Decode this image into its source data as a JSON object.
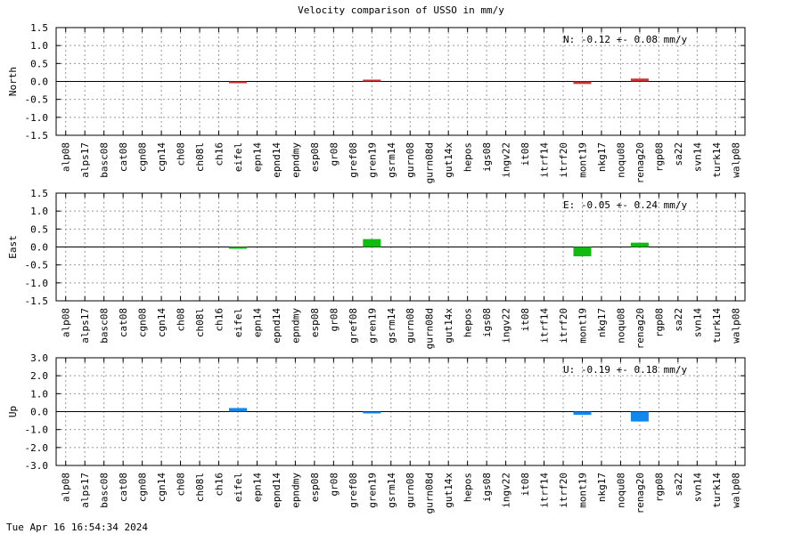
{
  "title": "Velocity comparison of USSO in mm/y",
  "timestamp": "Tue Apr 16 16:54:34 2024",
  "chart_data": [
    {
      "type": "bar",
      "ylabel": "North",
      "summary": "N:  -0.12 +-  0.08 mm/y",
      "color": "#cc3333",
      "ylim": [
        -1.5,
        1.5
      ],
      "yticks": [
        "1.5",
        "1.0",
        "0.5",
        "0.0",
        "-0.5",
        "-1.0",
        "-1.5"
      ],
      "categories": [
        "alp08",
        "alps17",
        "basc08",
        "cat08",
        "cgn08",
        "cgn14",
        "ch08",
        "ch08l",
        "ch16",
        "eifel",
        "epn14",
        "epnd14",
        "epndmy",
        "esp08",
        "gr08",
        "gref08",
        "gren19",
        "gsrm14",
        "gurn08",
        "gurn08d",
        "gut14x",
        "hepos",
        "igs08",
        "ingv22",
        "it08",
        "itrf14",
        "itrf20",
        "mont19",
        "nkg17",
        "noqu08",
        "renag20",
        "rgp08",
        "sa22",
        "svn14",
        "turk14",
        "walp08"
      ],
      "values": [
        null,
        null,
        null,
        null,
        null,
        null,
        null,
        null,
        null,
        -0.02,
        null,
        null,
        null,
        null,
        null,
        null,
        0.05,
        null,
        null,
        null,
        null,
        null,
        null,
        null,
        null,
        null,
        null,
        -0.07,
        null,
        null,
        0.08,
        null,
        null,
        null,
        null,
        null
      ],
      "grid": true
    },
    {
      "type": "bar",
      "ylabel": "East",
      "summary": "E:  -0.05 +-  0.24 mm/y",
      "color": "#11bb11",
      "ylim": [
        -1.5,
        1.5
      ],
      "yticks": [
        "1.5",
        "1.0",
        "0.5",
        "0.0",
        "-0.5",
        "-1.0",
        "-1.5"
      ],
      "categories": [
        "alp08",
        "alps17",
        "basc08",
        "cat08",
        "cgn08",
        "cgn14",
        "ch08",
        "ch08l",
        "ch16",
        "eifel",
        "epn14",
        "epnd14",
        "epndmy",
        "esp08",
        "gr08",
        "gref08",
        "gren19",
        "gsrm14",
        "gurn08",
        "gurn08d",
        "gut14x",
        "hepos",
        "igs08",
        "ingv22",
        "it08",
        "itrf14",
        "itrf20",
        "mont19",
        "nkg17",
        "noqu08",
        "renag20",
        "rgp08",
        "sa22",
        "svn14",
        "turk14",
        "walp08"
      ],
      "values": [
        null,
        null,
        null,
        null,
        null,
        null,
        null,
        null,
        null,
        -0.02,
        null,
        null,
        null,
        null,
        null,
        null,
        0.22,
        null,
        null,
        null,
        null,
        null,
        null,
        null,
        null,
        null,
        null,
        -0.26,
        null,
        null,
        0.12,
        null,
        null,
        null,
        null,
        null
      ],
      "grid": true
    },
    {
      "type": "bar",
      "ylabel": "Up",
      "summary": "U:  -0.19 +-  0.18 mm/y",
      "color": "#1188ee",
      "ylim": [
        -3.0,
        3.0
      ],
      "yticks": [
        "3.0",
        "2.0",
        "1.0",
        "0.0",
        "-1.0",
        "-2.0",
        "-3.0"
      ],
      "categories": [
        "alp08",
        "alps17",
        "basc08",
        "cat08",
        "cgn08",
        "cgn14",
        "ch08",
        "ch08l",
        "ch16",
        "eifel",
        "epn14",
        "epnd14",
        "epndmy",
        "esp08",
        "gr08",
        "gref08",
        "gren19",
        "gsrm14",
        "gurn08",
        "gurn08d",
        "gut14x",
        "hepos",
        "igs08",
        "ingv22",
        "it08",
        "itrf14",
        "itrf20",
        "mont19",
        "nkg17",
        "noqu08",
        "renag20",
        "rgp08",
        "sa22",
        "svn14",
        "turk14",
        "walp08"
      ],
      "values": [
        null,
        null,
        null,
        null,
        null,
        null,
        null,
        null,
        null,
        0.2,
        null,
        null,
        null,
        null,
        null,
        null,
        -0.1,
        null,
        null,
        null,
        null,
        null,
        null,
        null,
        null,
        null,
        null,
        -0.18,
        null,
        null,
        -0.55,
        null,
        null,
        null,
        null,
        null
      ],
      "grid": true
    }
  ]
}
